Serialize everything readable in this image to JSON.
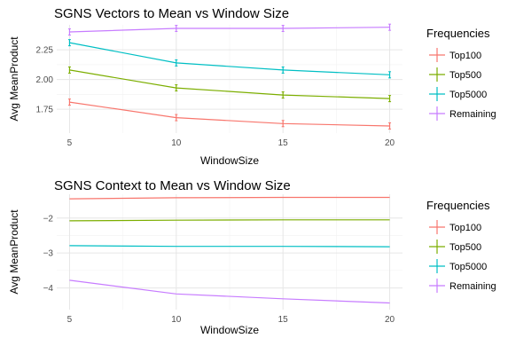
{
  "legend_title": "Frequencies",
  "colors": {
    "Top100": "#F8766D",
    "Top500": "#7CAE00",
    "Top5000": "#00BFC4",
    "Remaining": "#C77CFF"
  },
  "chart_data": [
    {
      "type": "line",
      "title": "SGNS Vectors to Mean vs Window Size",
      "xlabel": "WindowSize",
      "ylabel": "Avg MeanProduct",
      "x": [
        5,
        10,
        15,
        20
      ],
      "xticks": [
        5,
        10,
        15,
        20
      ],
      "xtick_labels": [
        "5",
        "10",
        "15",
        "20"
      ],
      "yticks": [
        1.75,
        2.0,
        2.25
      ],
      "ytick_labels": [
        "1.75",
        "2.00",
        "2.25"
      ],
      "xlim": [
        4.4,
        20.6
      ],
      "ylim": [
        1.55,
        2.46
      ],
      "grid": true,
      "error_bars": true,
      "legend_position": "right",
      "series": [
        {
          "name": "Top100",
          "values": [
            1.81,
            1.68,
            1.63,
            1.61
          ]
        },
        {
          "name": "Top500",
          "values": [
            2.08,
            1.93,
            1.87,
            1.84
          ]
        },
        {
          "name": "Top5000",
          "values": [
            2.31,
            2.14,
            2.08,
            2.04
          ]
        },
        {
          "name": "Remaining",
          "values": [
            2.4,
            2.43,
            2.43,
            2.44
          ]
        }
      ]
    },
    {
      "type": "line",
      "title": "SGNS Context to Mean vs Window Size",
      "xlabel": "WindowSize",
      "ylabel": "Avg MeanProduct",
      "x": [
        5,
        10,
        15,
        20
      ],
      "xticks": [
        5,
        10,
        15,
        20
      ],
      "xtick_labels": [
        "5",
        "10",
        "15",
        "20"
      ],
      "yticks": [
        -4,
        -3,
        -2
      ],
      "ytick_labels": [
        "−4",
        "−3",
        "−2"
      ],
      "xlim": [
        4.4,
        20.6
      ],
      "ylim": [
        -4.62,
        -1.32
      ],
      "grid": true,
      "error_bars": false,
      "legend_position": "right",
      "series": [
        {
          "name": "Top100",
          "values": [
            -1.45,
            -1.42,
            -1.41,
            -1.41
          ]
        },
        {
          "name": "Top500",
          "values": [
            -2.08,
            -2.06,
            -2.05,
            -2.05
          ]
        },
        {
          "name": "Top5000",
          "values": [
            -2.79,
            -2.81,
            -2.81,
            -2.82
          ]
        },
        {
          "name": "Remaining",
          "values": [
            -3.78,
            -4.17,
            -4.31,
            -4.43
          ]
        }
      ]
    }
  ]
}
